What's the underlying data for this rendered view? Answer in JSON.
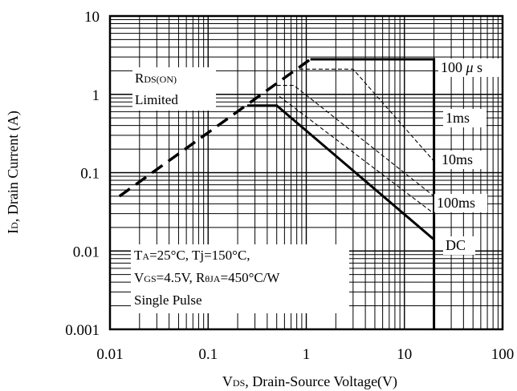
{
  "chart_data": {
    "type": "line",
    "x_scale": "log",
    "y_scale": "log",
    "xlim": [
      0.01,
      100
    ],
    "ylim": [
      0.001,
      10
    ],
    "grid": true,
    "x_ticks": [
      "0.01",
      "0.1",
      "1",
      "10",
      "100"
    ],
    "y_ticks": [
      "10",
      "1",
      "0.1",
      "0.01",
      "0.001"
    ],
    "xlabel": {
      "main": "V",
      "sub": "DS",
      "rest": ", Drain-Source Voltage(V)"
    },
    "ylabel": {
      "main": "I",
      "sub": "D",
      "rest": ", Drain Current (A)"
    },
    "rds_label": {
      "main": "R",
      "sub": "DS(ON)",
      "line2": "Limited"
    },
    "conditions": {
      "line1": {
        "a": "T",
        "b": "A",
        "c": "=25°C, Tj=150°C,"
      },
      "line2": {
        "a": "V",
        "b": "GS",
        "c": "=4.5V, R",
        "d": "θ",
        "e": "JA",
        "f": "=450°C/W"
      },
      "line3": "Single Pulse"
    },
    "rds_limit_line": {
      "x": [
        0.0125,
        1.1
      ],
      "y": [
        0.05,
        2.8
      ]
    },
    "series": [
      {
        "name": "100 μ s",
        "label_parts": [
          "100 ",
          "μ",
          " s"
        ],
        "style": "thick",
        "x": [
          1.1,
          20,
          20
        ],
        "y": [
          2.8,
          2.8,
          0.001
        ]
      },
      {
        "name": "1ms",
        "style": "thin-dashed",
        "x": [
          0.85,
          1.2,
          3,
          20
        ],
        "y": [
          2.1,
          2.1,
          2.1,
          0.14
        ]
      },
      {
        "name": "10ms",
        "style": "thin-dashed",
        "x": [
          0.5,
          0.75,
          20
        ],
        "y": [
          1.3,
          1.3,
          0.05
        ]
      },
      {
        "name": "100ms",
        "style": "thin-dashed",
        "x": [
          0.4,
          0.5,
          20
        ],
        "y": [
          1.0,
          1.0,
          0.03
        ]
      },
      {
        "name": "DC",
        "style": "thick",
        "x": [
          0.25,
          0.5,
          20
        ],
        "y": [
          0.72,
          0.72,
          0.014
        ]
      }
    ]
  }
}
